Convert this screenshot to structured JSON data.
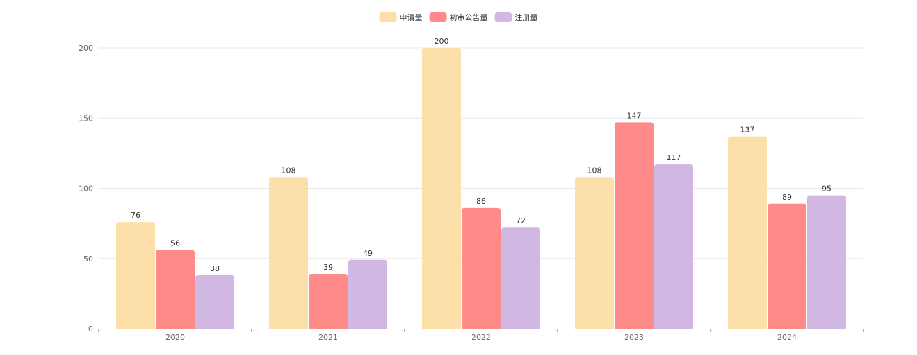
{
  "chart_data": {
    "type": "bar",
    "title": "",
    "xlabel": "",
    "ylabel": "",
    "categories": [
      "2020",
      "2021",
      "2022",
      "2023",
      "2024"
    ],
    "ylim": [
      0,
      200
    ],
    "yticks": [
      0,
      50,
      100,
      150,
      200
    ],
    "grid": true,
    "legend_position": "top-center",
    "series": [
      {
        "name": "申请量",
        "values": [
          76,
          108,
          200,
          108,
          137
        ],
        "color": "#FDE0A9"
      },
      {
        "name": "初审公告量",
        "values": [
          56,
          39,
          86,
          147,
          89
        ],
        "color": "#FF8A8A"
      },
      {
        "name": "注册量",
        "values": [
          38,
          49,
          72,
          117,
          95
        ],
        "color": "#D1B8E2"
      }
    ],
    "colors": {
      "grid": "#E8E8E8",
      "axis": "#666666",
      "tick_text": "#666666",
      "label_text": "#333333"
    }
  }
}
